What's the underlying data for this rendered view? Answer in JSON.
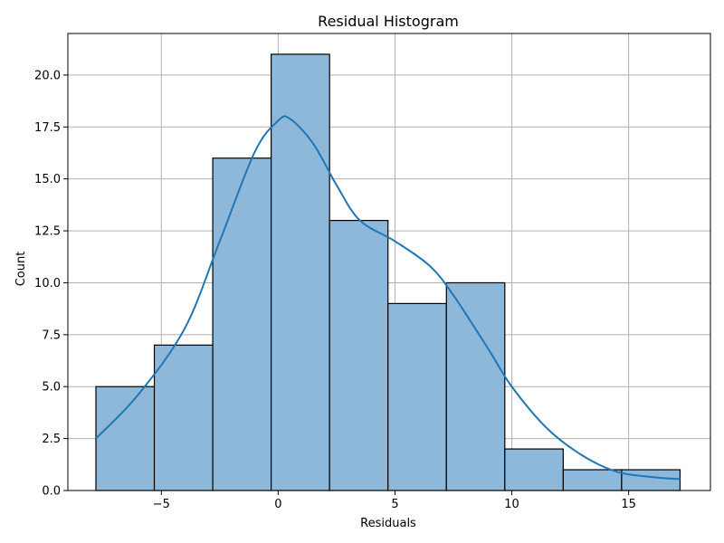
{
  "chart_data": {
    "type": "bar",
    "title": "Residual Histogram",
    "xlabel": "Residuals",
    "ylabel": "Count",
    "xlim": [
      -9.0,
      18.5
    ],
    "ylim": [
      0,
      22
    ],
    "grid": true,
    "bin_edges": [
      -7.8,
      -5.3,
      -2.8,
      -0.3,
      2.2,
      4.7,
      7.2,
      9.7,
      12.2,
      14.7,
      17.2
    ],
    "counts": [
      5,
      7,
      16,
      21,
      13,
      9,
      10,
      2,
      1,
      1
    ],
    "bar_color": "#8db8da",
    "edge_color": "#000000",
    "kde_color": "#1f77b4",
    "x_ticks": [
      -5,
      0,
      5,
      10,
      15
    ],
    "x_tick_labels": [
      "−5",
      "0",
      "5",
      "10",
      "15"
    ],
    "y_ticks": [
      0,
      2.5,
      5,
      7.5,
      10,
      12.5,
      15,
      17.5,
      20
    ],
    "y_tick_labels": [
      "0.0",
      "2.5",
      "5.0",
      "7.5",
      "10.0",
      "12.5",
      "15.0",
      "17.5",
      "20.0"
    ],
    "kde": {
      "x": [
        -7.8,
        -6.0,
        -4.0,
        -2.5,
        -1.0,
        0.0,
        0.5,
        1.5,
        2.5,
        3.5,
        5.0,
        6.5,
        7.5,
        9.0,
        10.0,
        11.5,
        13.0,
        14.5,
        16.0,
        17.2
      ],
      "y": [
        2.5,
        4.6,
        7.8,
        12.0,
        16.3,
        17.8,
        17.9,
        16.7,
        14.7,
        13.0,
        12.0,
        10.8,
        9.4,
        6.8,
        5.0,
        3.0,
        1.7,
        0.9,
        0.65,
        0.55
      ]
    }
  }
}
